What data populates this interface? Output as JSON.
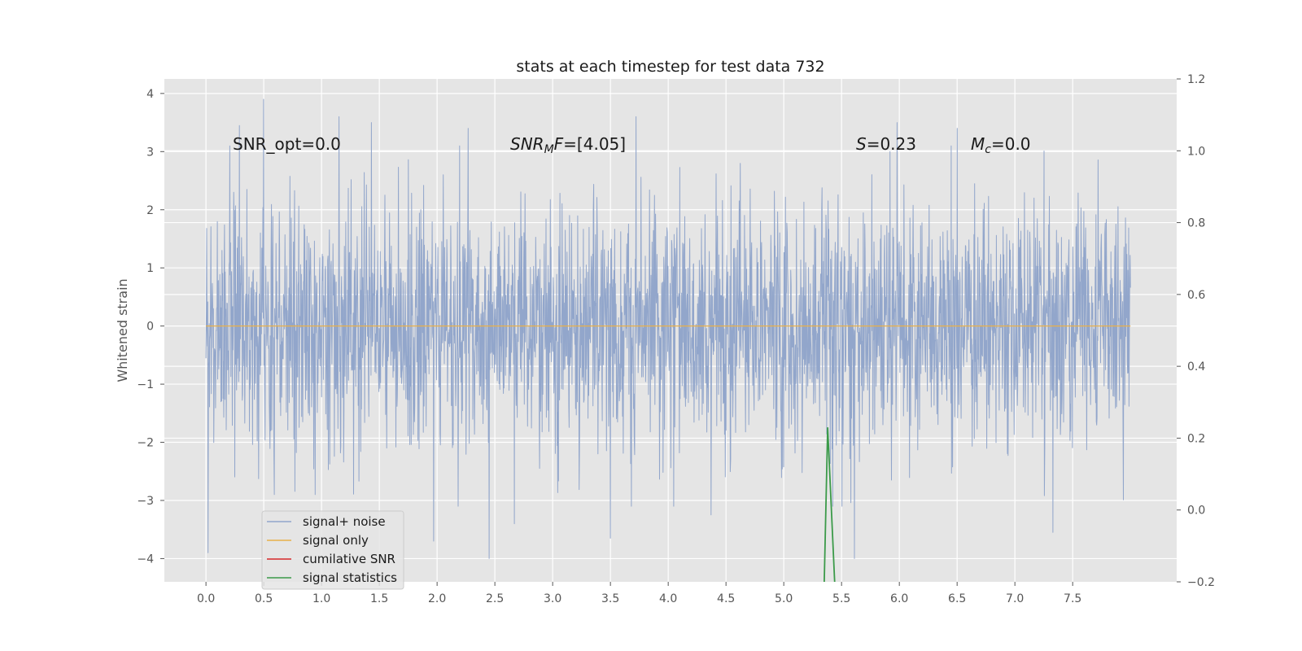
{
  "chart_data": {
    "type": "line",
    "title": "stats at each timestep for test data 732",
    "xlabel": "",
    "ylabel": "Whitened strain",
    "xlim": [
      -0.36,
      8.4
    ],
    "ylim": [
      -4.4,
      4.25
    ],
    "y2lim": [
      -0.2,
      1.2
    ],
    "x_ticks": [
      "0.0",
      "0.5",
      "1.0",
      "1.5",
      "2.0",
      "2.5",
      "3.0",
      "3.5",
      "4.0",
      "4.5",
      "5.0",
      "5.5",
      "6.0",
      "6.5",
      "7.0",
      "7.5"
    ],
    "y_ticks": [
      "4",
      "3",
      "2",
      "1",
      "0",
      "−1",
      "−2",
      "−3",
      "−4"
    ],
    "y2_ticks": [
      "1.2",
      "1.0",
      "0.8",
      "0.6",
      "0.4",
      "0.2",
      "0.0",
      "−0.2"
    ],
    "y2_grid": [
      0.2,
      0.4,
      0.6,
      0.8,
      1.0
    ],
    "grid": true,
    "background": "#e5e5e5",
    "annotations": {
      "snr_opt": "SNR_opt=0.0",
      "snr_mf_main": "SNR",
      "snr_mf_sub": "M",
      "snr_mf_rest": "F=[4.05]",
      "s_italic": "S",
      "s_rest": "=0.23",
      "mc_main": "M",
      "mc_sub": "c",
      "mc_rest": "=0.0"
    },
    "series": [
      {
        "name": "signal+ noise",
        "color": "#92a6cb",
        "axis": "left",
        "x_range": [
          0.0,
          8.0
        ],
        "description_values": "Gaussian whitened noise, most samples within ±2.5, extremes reaching about 3.9 and −4.0",
        "spikes": [
          {
            "x": 0.02,
            "y": -3.9
          },
          {
            "x": 0.5,
            "y": 3.9
          },
          {
            "x": 0.29,
            "y": 3.45
          },
          {
            "x": 1.15,
            "y": 3.6
          },
          {
            "x": 1.43,
            "y": 3.5
          },
          {
            "x": 1.97,
            "y": -3.7
          },
          {
            "x": 2.27,
            "y": 3.4
          },
          {
            "x": 2.45,
            "y": -4.0
          },
          {
            "x": 2.67,
            "y": -3.4
          },
          {
            "x": 3.5,
            "y": -3.65
          },
          {
            "x": 3.72,
            "y": 3.6
          },
          {
            "x": 4.37,
            "y": -3.25
          },
          {
            "x": 5.61,
            "y": -4.0
          },
          {
            "x": 5.98,
            "y": 3.5
          },
          {
            "x": 6.5,
            "y": 3.4
          },
          {
            "x": 7.33,
            "y": -3.55
          }
        ]
      },
      {
        "name": "signal only",
        "color": "#e8b04a",
        "axis": "left",
        "x": [
          0.0,
          8.0
        ],
        "y": [
          0.0,
          0.0
        ]
      },
      {
        "name": "cumilative SNR",
        "color": "#d62728",
        "axis": "right",
        "x": [],
        "y": []
      },
      {
        "name": "signal statistics",
        "color": "#3b9a49",
        "axis": "right",
        "x": [
          5.35,
          5.38,
          5.44
        ],
        "y": [
          -0.2,
          0.23,
          -0.2
        ]
      }
    ],
    "legend": {
      "location": "lower-left",
      "entries": [
        "signal+ noise",
        "signal only",
        "cumilative SNR",
        "signal statistics"
      ]
    }
  }
}
